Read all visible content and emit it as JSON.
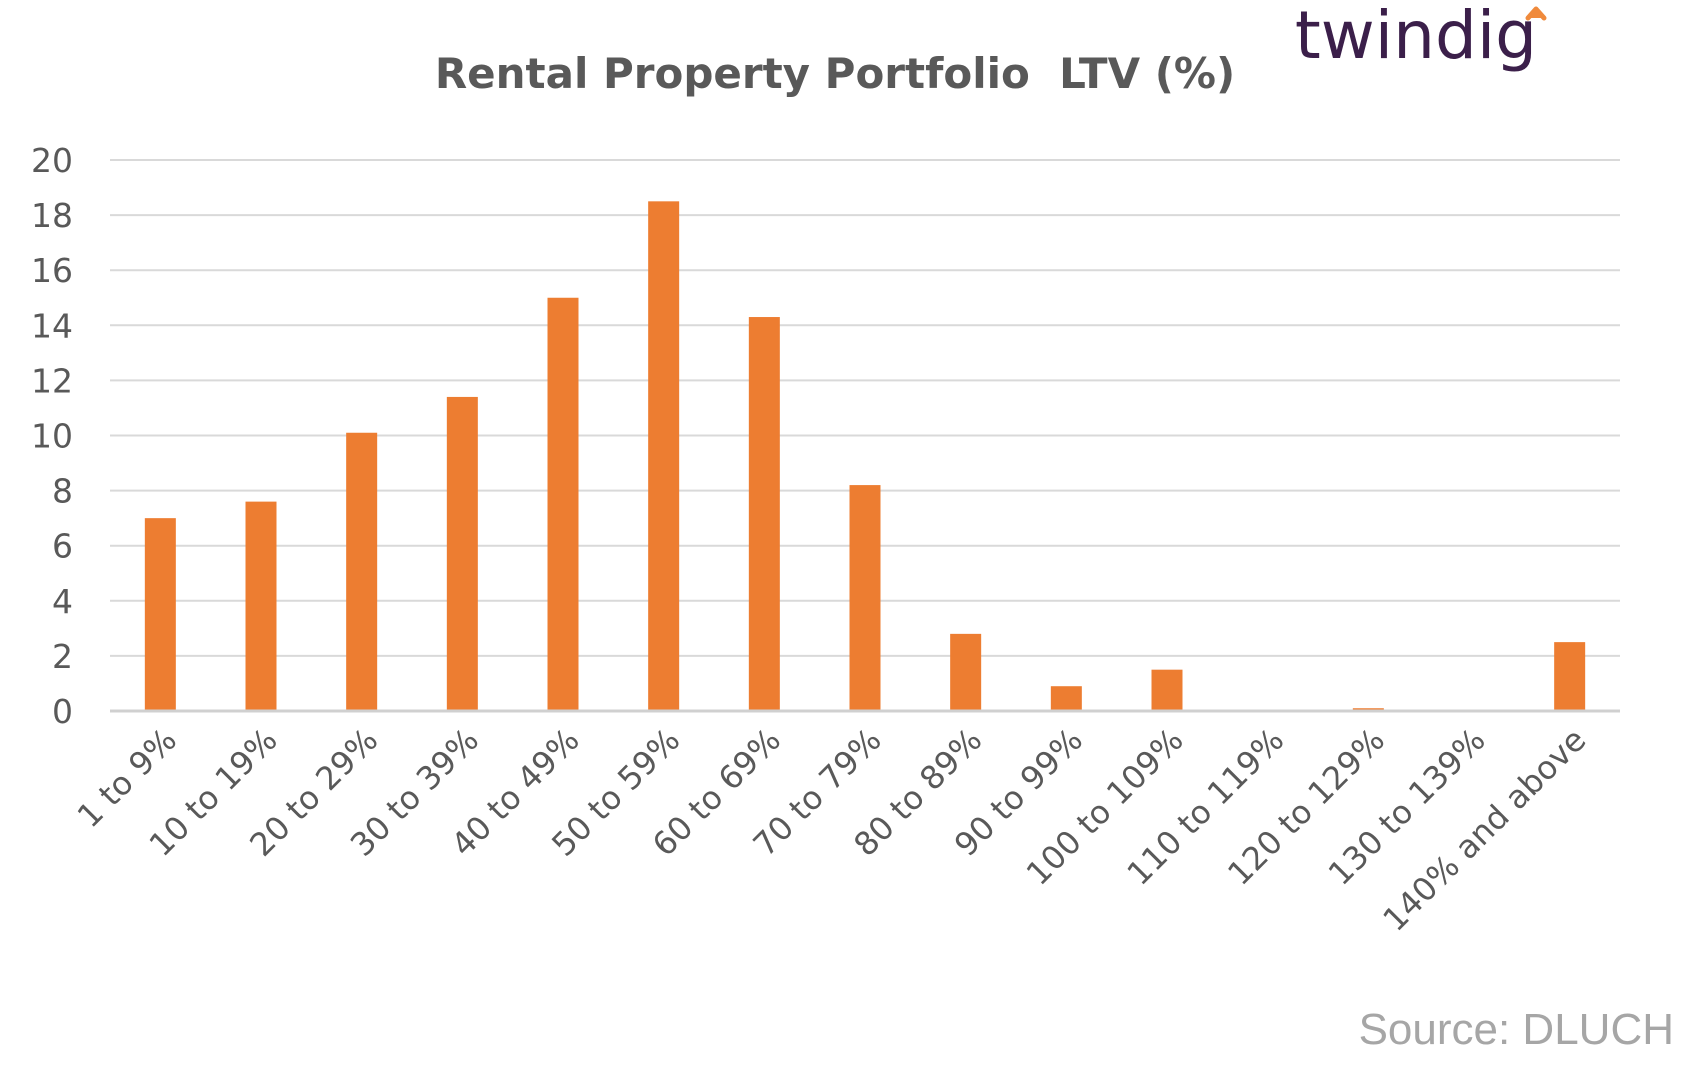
{
  "brand": {
    "name": "twindig",
    "accent_color": "#f08a3c",
    "text_color": "#3b1f4a"
  },
  "source": "Source: DLUCH",
  "chart_data": {
    "type": "bar",
    "title": "Rental Property Portfolio  LTV (%)",
    "xlabel": "",
    "ylabel": "",
    "ylim": [
      0,
      20
    ],
    "yticks": [
      0,
      2,
      4,
      6,
      8,
      10,
      12,
      14,
      16,
      18,
      20
    ],
    "grid": true,
    "bar_color": "#ed7d31",
    "categories": [
      "1 to 9%",
      "10 to 19%",
      "20 to 29%",
      "30 to 39%",
      "40 to 49%",
      "50 to 59%",
      "60 to 69%",
      "70 to 79%",
      "80 to 89%",
      "90 to 99%",
      "100 to 109%",
      "110 to 119%",
      "120 to 129%",
      "130 to 139%",
      "140% and above"
    ],
    "values": [
      7.0,
      7.6,
      10.1,
      11.4,
      15.0,
      18.5,
      14.3,
      8.2,
      2.8,
      0.9,
      1.5,
      0,
      0.1,
      0,
      2.5
    ]
  }
}
